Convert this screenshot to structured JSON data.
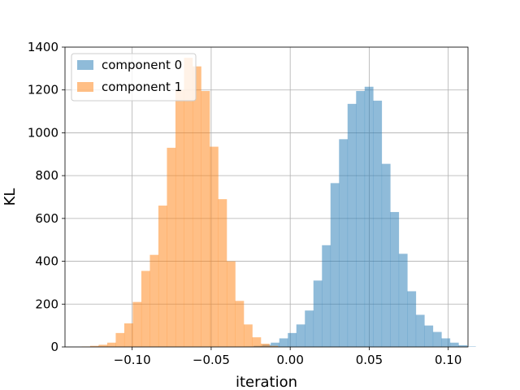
{
  "chart_data": {
    "type": "histogram",
    "title": "",
    "xlabel": "iteration",
    "ylabel": "KL",
    "xlim": [
      -0.1425,
      0.1125
    ],
    "ylim": [
      0,
      1400
    ],
    "xticks": [
      -0.1,
      -0.05,
      0.0,
      0.05,
      0.1
    ],
    "xtick_labels": [
      "−0.10",
      "−0.05",
      "0.00",
      "0.05",
      "0.10"
    ],
    "yticks": [
      0,
      200,
      400,
      600,
      800,
      1000,
      1200,
      1400
    ],
    "ytick_labels": [
      "0",
      "200",
      "400",
      "600",
      "800",
      "1000",
      "1200",
      "1400"
    ],
    "grid": true,
    "legend_position": "upper-left",
    "alpha": 0.5,
    "series": [
      {
        "name": "component 0",
        "color": "#1f77b4",
        "bin_start": -0.0285,
        "bin_width": 0.0054,
        "counts": [
          2,
          5,
          10,
          20,
          40,
          65,
          105,
          170,
          310,
          475,
          765,
          970,
          1135,
          1195,
          1215,
          1150,
          855,
          630,
          435,
          260,
          150,
          100,
          70,
          40,
          20,
          8,
          2
        ]
      },
      {
        "name": "component 1",
        "color": "#ff7f0e",
        "bin_start": -0.132,
        "bin_width": 0.0054,
        "counts": [
          2,
          5,
          10,
          20,
          65,
          110,
          210,
          355,
          430,
          660,
          930,
          1200,
          1350,
          1310,
          1195,
          935,
          690,
          400,
          215,
          105,
          45,
          15,
          5
        ]
      }
    ]
  }
}
